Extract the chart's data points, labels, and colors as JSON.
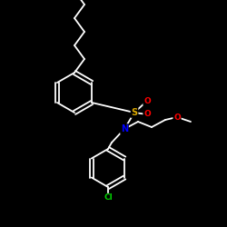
{
  "background_color": "#000000",
  "bond_color": "#ffffff",
  "atom_colors": {
    "S": "#ddaa00",
    "N": "#0000ff",
    "O": "#ff0000",
    "Cl": "#00cc00",
    "C": "#ffffff",
    "H": "#ffffff"
  },
  "figsize": [
    2.5,
    2.5
  ],
  "dpi": 100,
  "lw": 1.3
}
